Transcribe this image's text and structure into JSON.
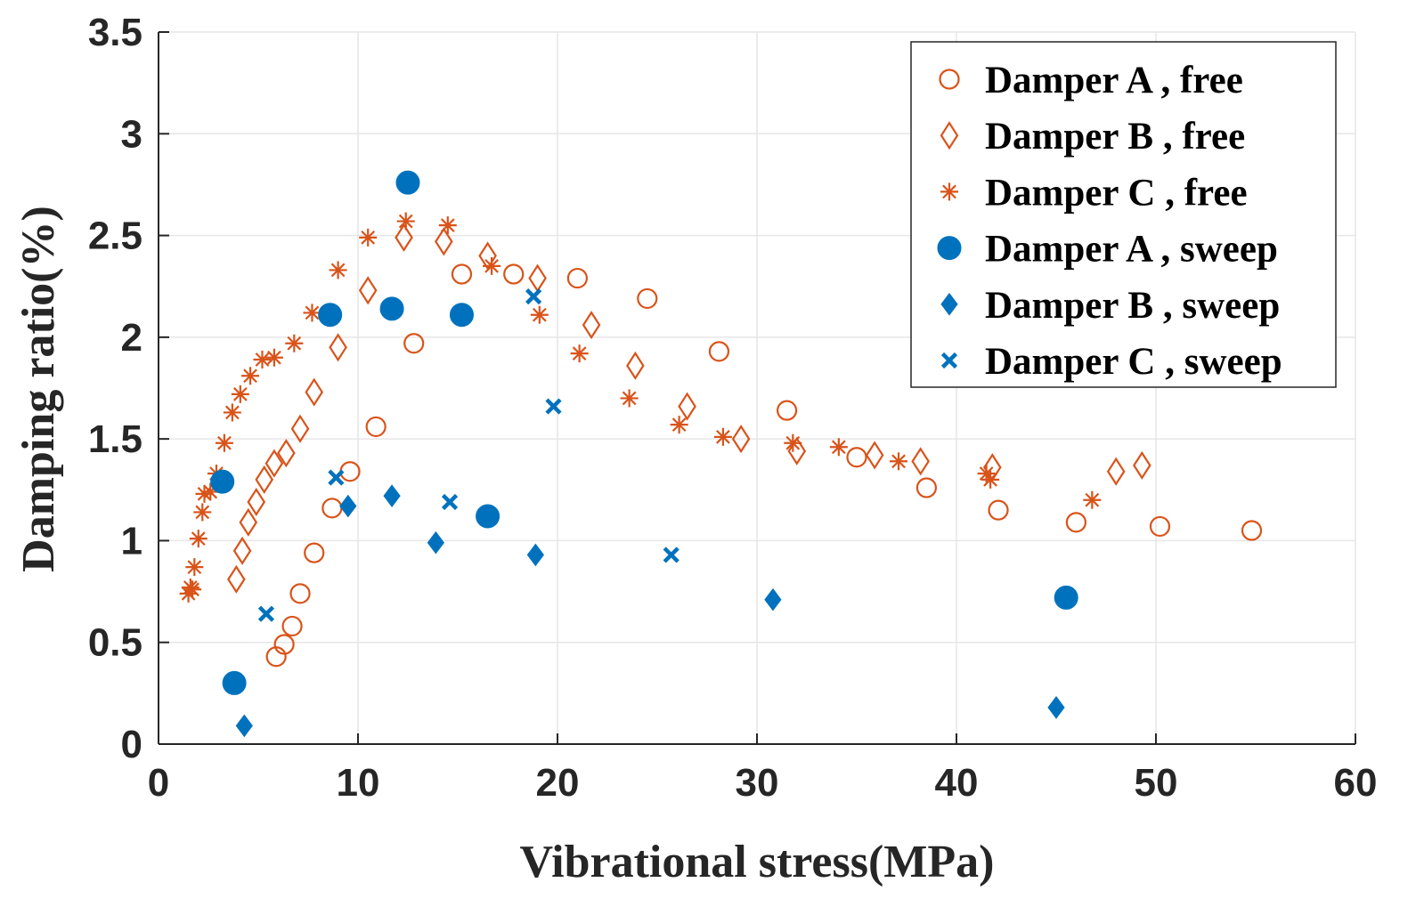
{
  "chart_data": {
    "type": "scatter",
    "title": "",
    "xlabel": "Vibrational stress(MPa)",
    "ylabel": "Damping ratio(%)",
    "xlim": [
      0,
      60
    ],
    "ylim": [
      0,
      3.5
    ],
    "xticks": [
      0,
      10,
      20,
      30,
      40,
      50,
      60
    ],
    "xtick_labels": [
      "0",
      "10",
      "20",
      "30",
      "40",
      "50",
      "60"
    ],
    "yticks": [
      0,
      0.5,
      1,
      1.5,
      2,
      2.5,
      3,
      3.5
    ],
    "ytick_labels": [
      "0",
      "0.5",
      "1",
      "1.5",
      "2",
      "2.5",
      "3",
      "3.5"
    ],
    "grid": true,
    "legend_position": "top-right",
    "series": [
      {
        "name": "Damper A , free",
        "marker": "circle-open",
        "color": "#D95319",
        "points": [
          [
            5.9,
            0.43
          ],
          [
            6.3,
            0.49
          ],
          [
            6.7,
            0.58
          ],
          [
            7.1,
            0.74
          ],
          [
            7.8,
            0.94
          ],
          [
            8.7,
            1.16
          ],
          [
            9.6,
            1.34
          ],
          [
            10.9,
            1.56
          ],
          [
            12.8,
            1.97
          ],
          [
            15.2,
            2.31
          ],
          [
            17.8,
            2.31
          ],
          [
            21.0,
            2.29
          ],
          [
            24.5,
            2.19
          ],
          [
            28.1,
            1.93
          ],
          [
            31.5,
            1.64
          ],
          [
            35.0,
            1.41
          ],
          [
            38.5,
            1.26
          ],
          [
            42.1,
            1.15
          ],
          [
            46.0,
            1.09
          ],
          [
            50.2,
            1.07
          ],
          [
            54.8,
            1.05
          ]
        ]
      },
      {
        "name": "Damper B , free",
        "marker": "diamond-open",
        "color": "#D95319",
        "points": [
          [
            3.9,
            0.81
          ],
          [
            4.2,
            0.95
          ],
          [
            4.5,
            1.09
          ],
          [
            4.9,
            1.19
          ],
          [
            5.3,
            1.3
          ],
          [
            5.8,
            1.38
          ],
          [
            6.4,
            1.43
          ],
          [
            7.1,
            1.55
          ],
          [
            7.8,
            1.73
          ],
          [
            9.0,
            1.95
          ],
          [
            10.5,
            2.23
          ],
          [
            12.3,
            2.49
          ],
          [
            14.3,
            2.47
          ],
          [
            16.5,
            2.4
          ],
          [
            19.0,
            2.29
          ],
          [
            21.7,
            2.06
          ],
          [
            23.9,
            1.86
          ],
          [
            26.5,
            1.66
          ],
          [
            29.2,
            1.5
          ],
          [
            32.0,
            1.44
          ],
          [
            35.9,
            1.42
          ],
          [
            38.2,
            1.39
          ],
          [
            41.8,
            1.36
          ],
          [
            48.0,
            1.34
          ],
          [
            49.3,
            1.37
          ]
        ]
      },
      {
        "name": "Damper C , free",
        "marker": "asterisk",
        "color": "#D95319",
        "points": [
          [
            1.5,
            0.74
          ],
          [
            1.6,
            0.77
          ],
          [
            1.7,
            0.76
          ],
          [
            1.8,
            0.87
          ],
          [
            2.0,
            1.01
          ],
          [
            2.2,
            1.14
          ],
          [
            2.3,
            1.23
          ],
          [
            2.6,
            1.24
          ],
          [
            2.9,
            1.33
          ],
          [
            3.3,
            1.48
          ],
          [
            3.7,
            1.63
          ],
          [
            4.1,
            1.72
          ],
          [
            4.6,
            1.81
          ],
          [
            5.2,
            1.89
          ],
          [
            5.8,
            1.9
          ],
          [
            6.8,
            1.97
          ],
          [
            7.7,
            2.12
          ],
          [
            9.0,
            2.33
          ],
          [
            10.5,
            2.49
          ],
          [
            12.4,
            2.57
          ],
          [
            14.5,
            2.55
          ],
          [
            16.7,
            2.35
          ],
          [
            19.1,
            2.11
          ],
          [
            21.1,
            1.92
          ],
          [
            23.6,
            1.7
          ],
          [
            26.1,
            1.57
          ],
          [
            28.3,
            1.51
          ],
          [
            31.8,
            1.48
          ],
          [
            34.1,
            1.46
          ],
          [
            37.1,
            1.39
          ],
          [
            41.5,
            1.33
          ],
          [
            41.7,
            1.3
          ],
          [
            46.8,
            1.2
          ]
        ]
      },
      {
        "name": "Damper A , sweep",
        "marker": "circle-filled",
        "color": "#0072BD",
        "points": [
          [
            3.2,
            1.29
          ],
          [
            3.8,
            0.3
          ],
          [
            8.6,
            2.11
          ],
          [
            11.7,
            2.14
          ],
          [
            12.5,
            2.76
          ],
          [
            15.2,
            2.11
          ],
          [
            16.5,
            1.12
          ],
          [
            45.5,
            0.72
          ]
        ]
      },
      {
        "name": "Damper B , sweep",
        "marker": "diamond-filled",
        "color": "#0072BD",
        "points": [
          [
            4.3,
            0.09
          ],
          [
            9.5,
            1.17
          ],
          [
            11.7,
            1.22
          ],
          [
            13.9,
            0.99
          ],
          [
            18.9,
            0.93
          ],
          [
            30.8,
            0.71
          ],
          [
            45.0,
            0.18
          ]
        ]
      },
      {
        "name": "Damper C , sweep",
        "marker": "x",
        "color": "#0072BD",
        "points": [
          [
            5.4,
            0.64
          ],
          [
            8.9,
            1.31
          ],
          [
            14.6,
            1.19
          ],
          [
            18.8,
            2.2
          ],
          [
            19.8,
            1.66
          ],
          [
            25.7,
            0.93
          ]
        ]
      }
    ]
  }
}
